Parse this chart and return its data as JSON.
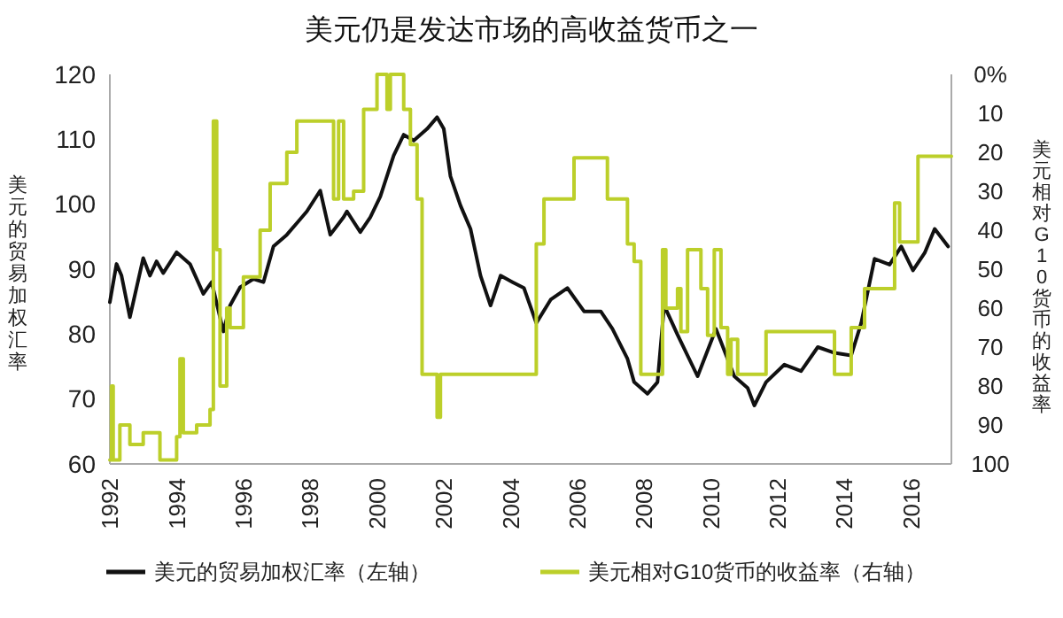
{
  "chart_data": {
    "type": "line",
    "title": "美元仍是发达市场的高收益货币之一",
    "ylabel": "美元的贸易加权汇率",
    "y2label": "美元相对G10货币的收益率",
    "xlim": [
      1992,
      2017.2
    ],
    "xticks": [
      1992,
      1994,
      1996,
      1998,
      2000,
      2002,
      2004,
      2006,
      2008,
      2010,
      2012,
      2014,
      2016
    ],
    "ylim": [
      60,
      120
    ],
    "yticks": [
      60,
      70,
      80,
      90,
      100,
      110,
      120
    ],
    "y2lim": [
      100,
      0
    ],
    "y2ticks": [
      {
        "value": 0,
        "label": "0%"
      },
      10,
      20,
      30,
      40,
      50,
      60,
      70,
      80,
      90,
      100
    ],
    "grid": false,
    "legend": "bottom",
    "marker": "none",
    "line_style": "solid",
    "series": [
      {
        "name": "美元的贸易加权汇率（左轴）",
        "color": "#111111",
        "x": [
          1992.0,
          1992.2,
          1992.35,
          1992.6,
          1993.0,
          1993.2,
          1993.4,
          1993.6,
          1994.0,
          1994.4,
          1994.8,
          1995.05,
          1995.4,
          1995.6,
          1995.9,
          1996.3,
          1996.6,
          1996.9,
          1997.3,
          1997.6,
          1997.9,
          1998.3,
          1998.6,
          1999.0,
          1999.1,
          1999.5,
          1999.8,
          2000.1,
          2000.5,
          2000.8,
          2001.1,
          2001.5,
          2001.8,
          2002.0,
          2002.2,
          2002.5,
          2002.8,
          2003.1,
          2003.4,
          2003.7,
          2004.06,
          2004.4,
          2004.77,
          2005.2,
          2005.7,
          2006.2,
          2006.7,
          2007.05,
          2007.5,
          2007.7,
          2008.1,
          2008.4,
          2008.6,
          2009.0,
          2009.6,
          2010.15,
          2010.7,
          2011.1,
          2011.3,
          2011.65,
          2012.2,
          2012.7,
          2013.2,
          2013.7,
          2014.2,
          2014.5,
          2014.9,
          2015.35,
          2015.7,
          2016.05,
          2016.4,
          2016.7,
          2017.1
        ],
        "values": [
          84.9,
          90.8,
          89,
          82.6,
          91.7,
          89,
          91.2,
          89.4,
          92.6,
          90.8,
          86.2,
          88,
          80.4,
          84.4,
          87.2,
          88.5,
          88,
          93.5,
          95.3,
          97.1,
          98.9,
          102.1,
          95.3,
          98,
          98.9,
          95.7,
          98,
          101.2,
          107.5,
          110.7,
          109.8,
          111.6,
          113.4,
          111.6,
          104.3,
          99.8,
          96.2,
          89,
          84.4,
          89,
          88,
          87.1,
          81.7,
          85.3,
          87.1,
          83.5,
          83.5,
          80.8,
          76.2,
          72.6,
          70.8,
          72.6,
          84.4,
          79.9,
          73.5,
          80.8,
          73.5,
          71.7,
          69,
          72.6,
          75.3,
          74.3,
          78,
          77.1,
          76.7,
          81.7,
          91.6,
          90.7,
          93.5,
          89.8,
          92.5,
          96.2,
          93.5
        ]
      },
      {
        "name": "美元相对G10货币的收益率（右轴）",
        "color": "#bccf2a",
        "type": "step",
        "axis": "y2",
        "x": [
          1992.0,
          1992.05,
          1992.1,
          1992.3,
          1992.6,
          1993.0,
          1993.5,
          1994.0,
          1994.1,
          1994.2,
          1994.6,
          1995.0,
          1995.1,
          1995.2,
          1995.3,
          1995.5,
          1995.6,
          1996.0,
          1996.5,
          1996.8,
          1997.3,
          1997.6,
          1998.7,
          1998.85,
          1999.0,
          1999.3,
          1999.6,
          2000.0,
          2000.3,
          2000.4,
          2000.8,
          2001.0,
          2001.2,
          2001.35,
          2001.8,
          2001.9,
          2004.77,
          2005.0,
          2005.9,
          2006.9,
          2007.5,
          2007.7,
          2007.9,
          2008.55,
          2008.65,
          2009.0,
          2009.1,
          2009.3,
          2009.7,
          2009.9,
          2010.1,
          2010.3,
          2010.5,
          2010.6,
          2010.8,
          2011.65,
          2013.7,
          2014.2,
          2014.6,
          2015.5,
          2015.65,
          2015.8,
          2016.2,
          2017.2
        ],
        "values": [
          99,
          80,
          99,
          90,
          95,
          92,
          99,
          93,
          73,
          92,
          90,
          86,
          12,
          45,
          80,
          60,
          65,
          52,
          40,
          28,
          20,
          12,
          32,
          12,
          32,
          30,
          9,
          0,
          9,
          0,
          9,
          18,
          32,
          77,
          88,
          77,
          43.5,
          32,
          21.4,
          32,
          43.5,
          48,
          77,
          45,
          60,
          55,
          66,
          45,
          55,
          67,
          45,
          65,
          77,
          68,
          77,
          66,
          77,
          65,
          55,
          33,
          43,
          43,
          21,
          21
        ]
      }
    ]
  }
}
